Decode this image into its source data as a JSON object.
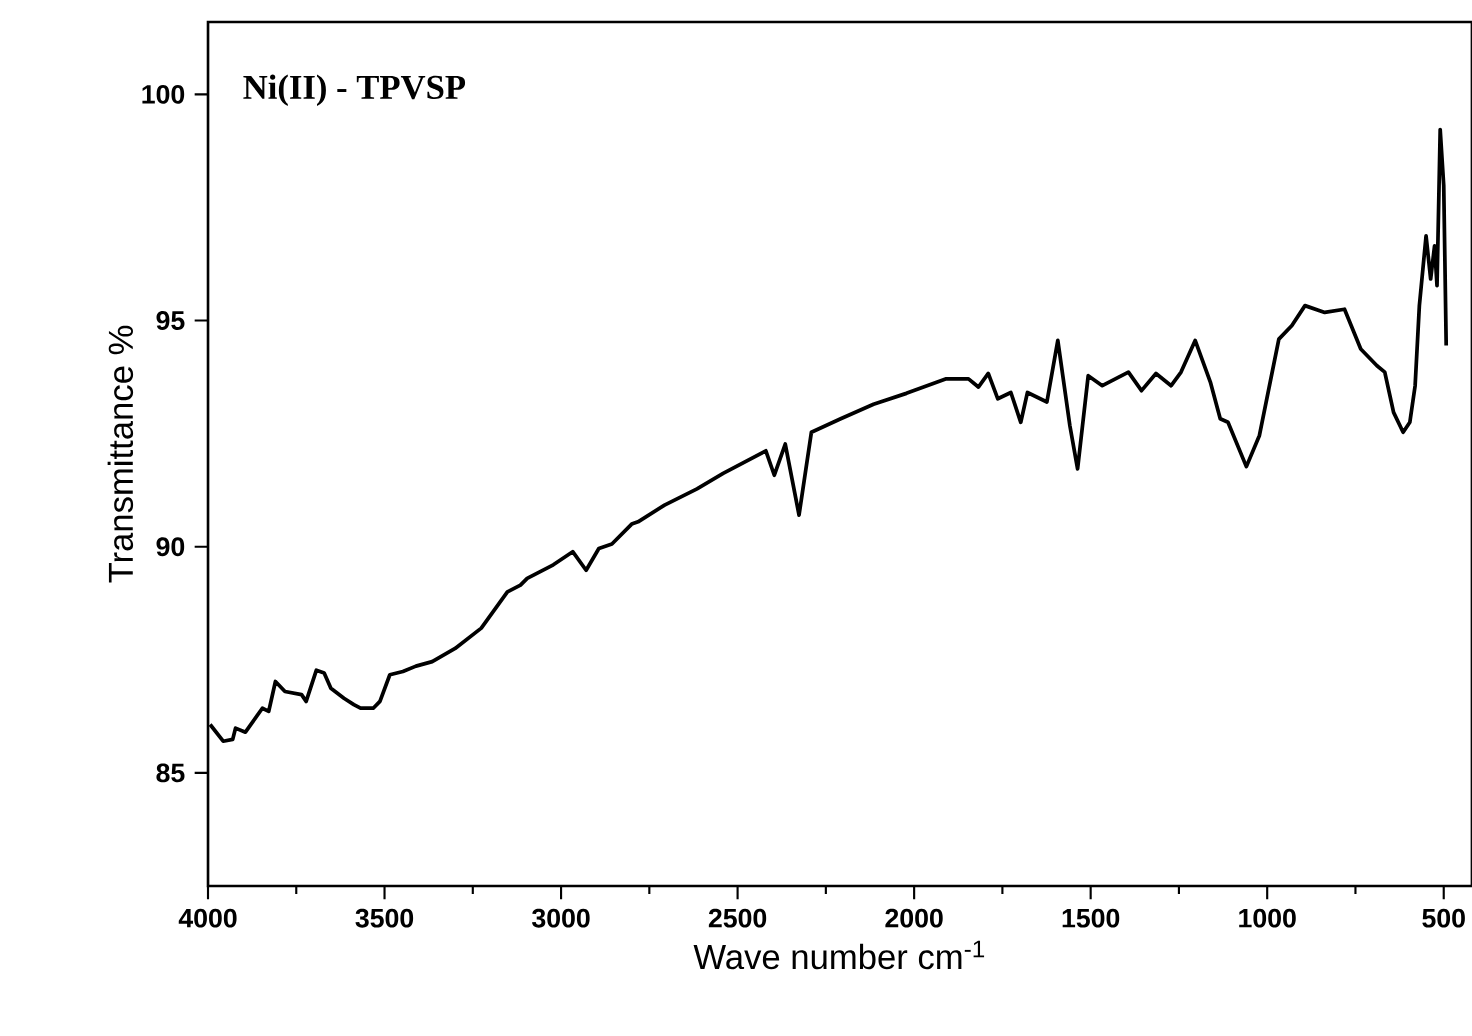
{
  "chart_data": {
    "type": "line",
    "title": "Ni(II) - TPVSP",
    "xlabel": "Wave number cm$^{-1}$",
    "ylabel": "Transmittance %",
    "xlim": [
      4000,
      420
    ],
    "ylim": [
      82.5,
      101.6
    ],
    "xticks": [
      4000,
      3500,
      3000,
      2500,
      2000,
      1500,
      1000,
      500
    ],
    "yticks": [
      85,
      90,
      95,
      100
    ],
    "marker": "none",
    "line_style": "solid",
    "series": [
      {
        "color": "#000000",
        "x": [
          3994,
          3957,
          3930,
          3922,
          3894,
          3846,
          3828,
          3809,
          3782,
          3735,
          3722,
          3693,
          3671,
          3652,
          3615,
          3587,
          3568,
          3532,
          3513,
          3485,
          3448,
          3411,
          3365,
          3300,
          3226,
          3152,
          3115,
          3096,
          3022,
          2967,
          2929,
          2893,
          2856,
          2800,
          2782,
          2707,
          2615,
          2541,
          2420,
          2396,
          2365,
          2326,
          2291,
          2208,
          2115,
          2022,
          1911,
          1846,
          1818,
          1790,
          1763,
          1726,
          1698,
          1679,
          1624,
          1593,
          1559,
          1537,
          1507,
          1467,
          1393,
          1356,
          1315,
          1272,
          1244,
          1204,
          1161,
          1133,
          1111,
          1059,
          1022,
          967,
          930,
          893,
          837,
          781,
          735,
          689,
          667,
          642,
          615,
          596,
          581,
          569,
          550,
          537,
          526,
          519,
          510,
          500,
          493
        ],
        "values": [
          86.07,
          85.7,
          85.74,
          85.99,
          85.9,
          86.43,
          86.36,
          87.02,
          86.8,
          86.73,
          86.58,
          87.27,
          87.21,
          86.87,
          86.65,
          86.51,
          86.43,
          86.43,
          86.58,
          87.17,
          87.24,
          87.36,
          87.46,
          87.75,
          88.2,
          89.0,
          89.15,
          89.3,
          89.6,
          89.89,
          89.48,
          89.96,
          90.06,
          90.5,
          90.55,
          90.92,
          91.28,
          91.62,
          92.12,
          91.58,
          92.27,
          90.7,
          92.53,
          92.83,
          93.15,
          93.39,
          93.71,
          93.71,
          93.53,
          93.83,
          93.27,
          93.41,
          92.75,
          93.41,
          93.2,
          94.56,
          92.68,
          91.72,
          93.78,
          93.56,
          93.86,
          93.45,
          93.83,
          93.56,
          93.86,
          94.56,
          93.64,
          92.83,
          92.75,
          91.77,
          92.46,
          94.59,
          94.89,
          95.33,
          95.18,
          95.25,
          94.37,
          94.0,
          93.86,
          92.97,
          92.53,
          92.75,
          93.56,
          95.33,
          96.87,
          95.92,
          96.65,
          95.77,
          99.22,
          97.98,
          94.45
        ]
      }
    ]
  }
}
